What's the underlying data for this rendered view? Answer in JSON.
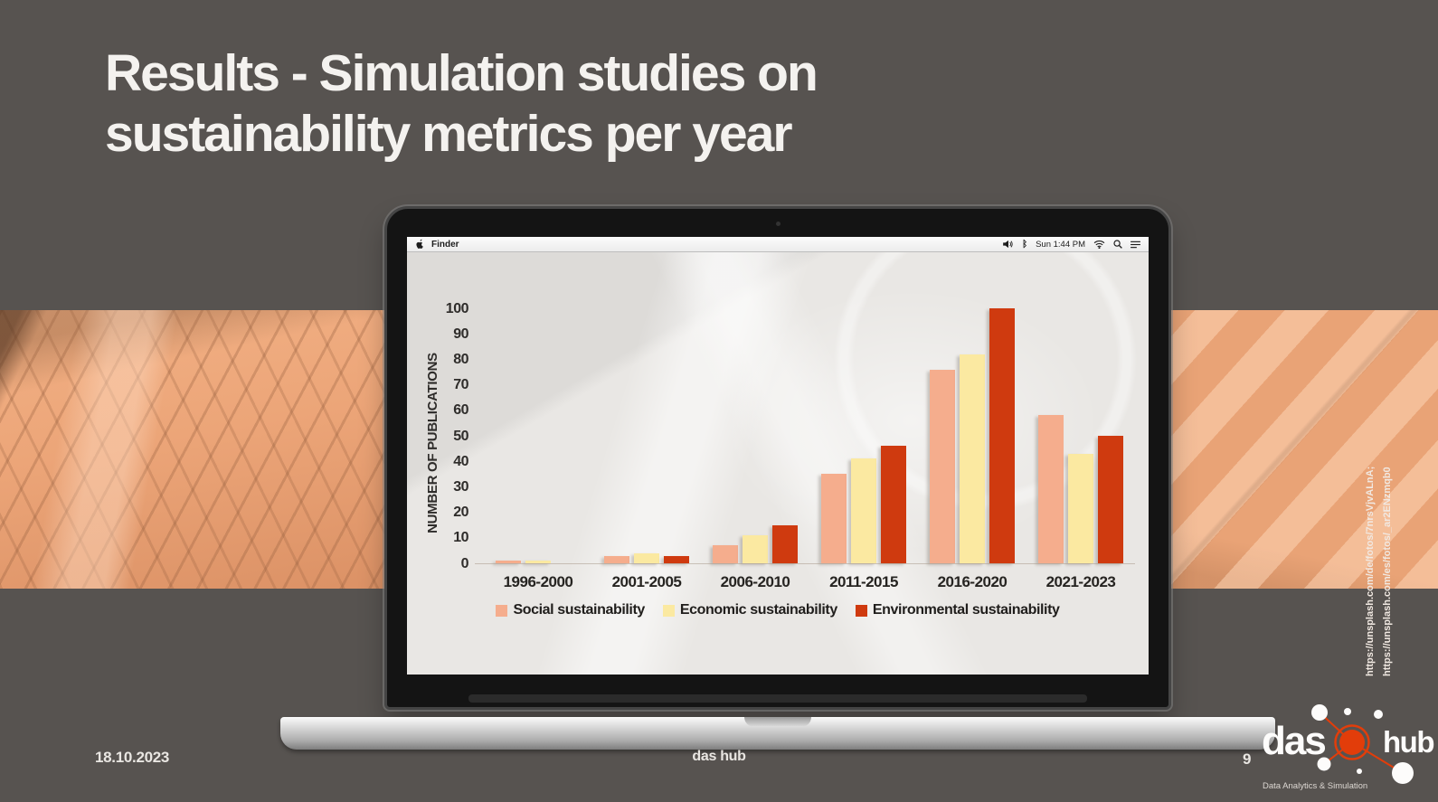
{
  "slide": {
    "title_lines": [
      "Results - Simulation studies on",
      "sustainability metrics per year"
    ],
    "footer": {
      "date": "18.10.2023",
      "center_text": "das hub",
      "page_number": "9"
    },
    "image_credits": [
      "https://unsplash.com/de/fotos/7nrsVjvALnA;",
      "https://unsplash.com/es/fotos/_ar2ENzmqb0"
    ],
    "colors": {
      "background": "#575350",
      "accent_orange": "#eba67a",
      "title_text": "#f4f2ef"
    }
  },
  "laptop": {
    "menu_bar": {
      "app_name": "Finder",
      "status_time": "Sun 1:44 PM",
      "bluetooth_glyph": "ᛒ",
      "icons": [
        "apple-icon",
        "volume-icon",
        "bluetooth-icon",
        "wifi-icon",
        "spotlight-search-icon",
        "menu-list-icon"
      ]
    }
  },
  "logo": {
    "word1": "das",
    "word2": "hub",
    "tagline": "Data Analytics & Simulation",
    "accent_color": "#e23d0a"
  },
  "chart_data": {
    "type": "bar",
    "title": "",
    "categories": [
      "1996-2000",
      "2001-2005",
      "2006-2010",
      "2011-2015",
      "2016-2020",
      "2021-2023"
    ],
    "series": [
      {
        "name": "Social sustainability",
        "color": "#F5AD8D",
        "values": [
          1,
          3,
          7,
          35,
          76,
          58
        ]
      },
      {
        "name": "Economic sustainability",
        "color": "#FBE9A1",
        "values": [
          1,
          4,
          11,
          41,
          82,
          43
        ]
      },
      {
        "name": "Environmental sustainability",
        "color": "#CF3A0F",
        "values": [
          0,
          3,
          15,
          46,
          100,
          50
        ]
      }
    ],
    "xlabel": "",
    "ylabel": "NUMBER OF PUBLICATIONS",
    "ylim": [
      0,
      100
    ],
    "ytick_step": 10,
    "grid": false,
    "legend_position": "bottom"
  }
}
